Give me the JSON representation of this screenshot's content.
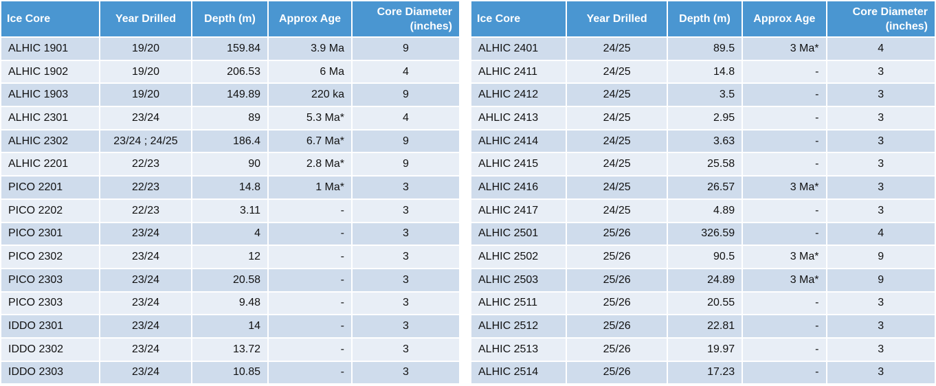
{
  "columns": [
    "Ice Core",
    "Year Drilled",
    "Depth (m)",
    "Approx Age",
    "Core Diameter (inches)"
  ],
  "diameter_header": {
    "line1": "Core Diameter",
    "line2": "(inches)"
  },
  "left_table": [
    {
      "core": "ALHIC 1901",
      "year": "19/20",
      "depth": "159.84",
      "age": "3.9 Ma",
      "diameter": "9"
    },
    {
      "core": "ALHIC 1902",
      "year": "19/20",
      "depth": "206.53",
      "age": "6 Ma",
      "diameter": "4"
    },
    {
      "core": "ALHIC 1903",
      "year": "19/20",
      "depth": "149.89",
      "age": "220 ka",
      "diameter": "9"
    },
    {
      "core": "ALHIC 2301",
      "year": "23/24",
      "depth": "89",
      "age": "5.3 Ma*",
      "diameter": "4"
    },
    {
      "core": "ALHIC 2302",
      "year": "23/24 ; 24/25",
      "depth": "186.4",
      "age": "6.7 Ma*",
      "diameter": "9"
    },
    {
      "core": "ALHIC 2201",
      "year": "22/23",
      "depth": "90",
      "age": "2.8 Ma*",
      "diameter": "9"
    },
    {
      "core": "PICO 2201",
      "year": "22/23",
      "depth": "14.8",
      "age": "1 Ma*",
      "diameter": "3"
    },
    {
      "core": "PICO 2202",
      "year": "22/23",
      "depth": "3.11",
      "age": "-",
      "diameter": "3"
    },
    {
      "core": "PICO 2301",
      "year": "23/24",
      "depth": "4",
      "age": "-",
      "diameter": "3"
    },
    {
      "core": "PICO 2302",
      "year": "23/24",
      "depth": "12",
      "age": "-",
      "diameter": "3"
    },
    {
      "core": "PICO 2303",
      "year": "23/24",
      "depth": "20.58",
      "age": "-",
      "diameter": "3"
    },
    {
      "core": "PICO 2303",
      "year": "23/24",
      "depth": "9.48",
      "age": "-",
      "diameter": "3"
    },
    {
      "core": "IDDO 2301",
      "year": "23/24",
      "depth": "14",
      "age": "-",
      "diameter": "3"
    },
    {
      "core": "IDDO 2302",
      "year": "23/24",
      "depth": "13.72",
      "age": "-",
      "diameter": "3"
    },
    {
      "core": "IDDO 2303",
      "year": "23/24",
      "depth": "10.85",
      "age": "-",
      "diameter": "3"
    }
  ],
  "right_table": [
    {
      "core": "ALHIC 2401",
      "year": "24/25",
      "depth": "89.5",
      "age": "3 Ma*",
      "diameter": "4"
    },
    {
      "core": "ALHIC 2411",
      "year": "24/25",
      "depth": "14.8",
      "age": "-",
      "diameter": "3"
    },
    {
      "core": "ALHIC 2412",
      "year": "24/25",
      "depth": "3.5",
      "age": "-",
      "diameter": "3"
    },
    {
      "core": "AHLIC 2413",
      "year": "24/25",
      "depth": "2.95",
      "age": "-",
      "diameter": "3"
    },
    {
      "core": "ALHIC 2414",
      "year": "24/25",
      "depth": "3.63",
      "age": "-",
      "diameter": "3"
    },
    {
      "core": "ALHIC 2415",
      "year": "24/25",
      "depth": "25.58",
      "age": "-",
      "diameter": "3"
    },
    {
      "core": "ALHIC 2416",
      "year": "24/25",
      "depth": "26.57",
      "age": "3 Ma*",
      "diameter": "3"
    },
    {
      "core": "ALHIC 2417",
      "year": "24/25",
      "depth": "4.89",
      "age": "-",
      "diameter": "3"
    },
    {
      "core": "ALHIC 2501",
      "year": "25/26",
      "depth": "326.59",
      "age": "-",
      "diameter": "4"
    },
    {
      "core": "ALHIC 2502",
      "year": "25/26",
      "depth": "90.5",
      "age": "3 Ma*",
      "diameter": "9"
    },
    {
      "core": "ALHIC 2503",
      "year": "25/26",
      "depth": "24.89",
      "age": "3 Ma*",
      "diameter": "9"
    },
    {
      "core": "ALHIC 2511",
      "year": "25/26",
      "depth": "20.55",
      "age": "-",
      "diameter": "3"
    },
    {
      "core": "ALHIC 2512",
      "year": "25/26",
      "depth": "22.81",
      "age": "-",
      "diameter": "3"
    },
    {
      "core": "ALHIC 2513",
      "year": "25/26",
      "depth": "19.97",
      "age": "-",
      "diameter": "3"
    },
    {
      "core": "ALHIC 2514",
      "year": "25/26",
      "depth": "17.23",
      "age": "-",
      "diameter": "3"
    }
  ],
  "colors": {
    "header_bg": "#4a96d1",
    "row_dark": "#cfdcec",
    "row_light": "#e8eef6"
  }
}
